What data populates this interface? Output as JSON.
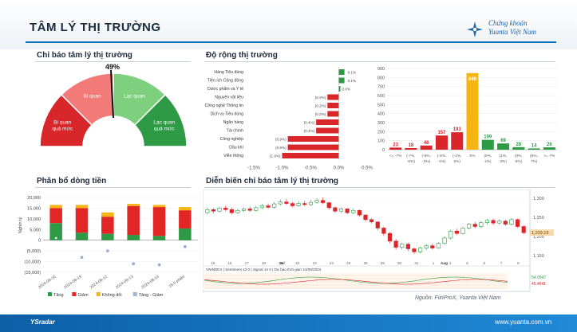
{
  "header": {
    "title": "TÂM LÝ THỊ TRƯỜNG",
    "logo_line1": "Chứng khoán",
    "logo_line2": "Yuanta Việt Nam"
  },
  "sentiment": {
    "title": "Chỉ báo tâm lý thị trường",
    "value_label": "49%",
    "value": 0.49,
    "zones": [
      "Bi quan quá mức",
      "Bi quan",
      "Lạc quan",
      "Lạc quan quá mức"
    ],
    "colors": [
      "#d9262b",
      "#f27a78",
      "#7fd07e",
      "#2e9a46"
    ]
  },
  "breadth": {
    "title": "Độ rộng thị trường",
    "sectors": [
      {
        "name": "Hàng Tiêu dùng",
        "value": 0.1,
        "label": "0.1%"
      },
      {
        "name": "Tiện ích Cộng đồng",
        "value": 0.1,
        "label": "0.1%"
      },
      {
        "name": "Dược phẩm và Y tế",
        "value": 0.0,
        "label": "0.0%"
      },
      {
        "name": "Nguyên vật liệu",
        "value": -0.2,
        "label": "(0.2%)"
      },
      {
        "name": "Công nghệ Thông tin",
        "value": -0.2,
        "label": "(0.2%)"
      },
      {
        "name": "Dịch vụ Tiêu dùng",
        "value": -0.2,
        "label": "(0.2%)"
      },
      {
        "name": "Ngân hàng",
        "value": -0.4,
        "label": "(0.4%)"
      },
      {
        "name": "Tài chính",
        "value": -0.4,
        "label": "(0.4%)"
      },
      {
        "name": "Công nghiệp",
        "value": -0.9,
        "label": "(0.9%)"
      },
      {
        "name": "Dầu khí",
        "value": -0.9,
        "label": "(0.9%)"
      },
      {
        "name": "Viễn thông",
        "value": -1.0,
        "label": "(1.0%)"
      }
    ],
    "x_ticks": [
      "-1.5%",
      "-1.0%",
      "-0.5%",
      "0.0%",
      "0.5%"
    ],
    "xlim": [
      -1.5,
      0.5
    ]
  },
  "distribution": {
    "y_ticks": [
      "900",
      "800",
      "700",
      "600",
      "500",
      "400",
      "300",
      "200",
      "100",
      "0"
    ],
    "ylim": [
      0,
      900
    ],
    "values": [
      23,
      18,
      46,
      157,
      193,
      849,
      109,
      69,
      28,
      14,
      26
    ],
    "labels": [
      "23",
      "18",
      "46",
      "157",
      "193",
      "849",
      "109",
      "69",
      "28",
      "14",
      "26"
    ],
    "categories": [
      "<= -7%",
      "(-7%, -5%)",
      "(-5%, -3%)",
      "(-3%, -1%)",
      "(-1%, 0%)",
      "0%",
      "(0%, 1%)",
      "(1%, 3%)",
      "(3%, 5%)",
      "(5%, 7%)",
      ">= 7%"
    ],
    "cat_line1": [
      "<= -7%",
      "(-7%,",
      "(-5%,",
      "(-3%,",
      "(-1%,",
      "0%",
      "(0%,",
      "(1%,",
      "(3%,",
      "(5%,",
      ">= 7%"
    ],
    "cat_line2": [
      "",
      "-5%)",
      "-3%)",
      "-1%)",
      "0%)",
      "",
      "1%)",
      "3%)",
      "5%)",
      "7%)",
      ""
    ],
    "colors": [
      "#d9262b",
      "#d9262b",
      "#d9262b",
      "#d9262b",
      "#d9262b",
      "#f6b513",
      "#2e9a46",
      "#2e9a46",
      "#2e9a46",
      "#2e9a46",
      "#2e9a46"
    ]
  },
  "money_flow": {
    "title": "Phân bổ dòng tiền",
    "ylabel": "Nghìn tỷ",
    "y_ticks": [
      "20,000",
      "15,000",
      "10,000",
      "5,000",
      "0",
      "(5,000)",
      "(10,000)",
      "(15,000)"
    ],
    "ylim": [
      -15000,
      20000
    ],
    "dates": [
      "2024-08-16",
      "2024-08-19",
      "2024-08-12",
      "2024-08-13",
      "2024-08-14",
      "18.5 phiên"
    ],
    "series": [
      {
        "name": "Tăng",
        "color": "#2e9a46",
        "values": [
          8000,
          3500,
          3000,
          2500,
          2000,
          5500
        ]
      },
      {
        "name": "Giảm",
        "color": "#e22626",
        "values": [
          7000,
          11500,
          8000,
          13500,
          13500,
          8500
        ]
      },
      {
        "name": "Không đổi",
        "color": "#f6b513",
        "values": [
          1500,
          1500,
          2000,
          1000,
          1000,
          1500
        ]
      }
    ],
    "net_name": "Tăng - Giảm",
    "net": [
      1000,
      -8000,
      -5000,
      -11000,
      -11500,
      -3000
    ],
    "legend": [
      "Tăng",
      "Giảm",
      "Không đổi",
      "Tăng - Giảm"
    ]
  },
  "sentiment_history": {
    "title": "Diễn biến chỉ báo tâm lý thị trường",
    "price_ticks": [
      "1,300",
      "1,250",
      "1,200",
      "1,150"
    ],
    "price_ylim": [
      1140,
      1310
    ],
    "last_price": "1,239.19",
    "months": [
      "Jul",
      "Aug"
    ],
    "date_ticks": [
      "15",
      "16",
      "17",
      "18",
      "19",
      "22",
      "23",
      "24",
      "25",
      "26",
      "29",
      "30",
      "31",
      "1",
      "2",
      "5",
      "6",
      "7",
      "8"
    ],
    "indicator_caption": "VNINDEX | Sentiment 12 0 | Signal 14 0 | Dự báo thời gian 14/08/2024",
    "indicator_values": [
      "54.0547",
      "45.4641"
    ],
    "candles": [
      {
        "o": 1262,
        "c": 1270,
        "h": 1275,
        "l": 1258
      },
      {
        "o": 1270,
        "c": 1266,
        "h": 1274,
        "l": 1260
      },
      {
        "o": 1266,
        "c": 1274,
        "h": 1278,
        "l": 1263
      },
      {
        "o": 1274,
        "c": 1270,
        "h": 1280,
        "l": 1266
      },
      {
        "o": 1270,
        "c": 1262,
        "h": 1275,
        "l": 1258
      },
      {
        "o": 1262,
        "c": 1268,
        "h": 1272,
        "l": 1259
      },
      {
        "o": 1268,
        "c": 1272,
        "h": 1276,
        "l": 1264
      },
      {
        "o": 1272,
        "c": 1268,
        "h": 1278,
        "l": 1264
      },
      {
        "o": 1268,
        "c": 1275,
        "h": 1280,
        "l": 1265
      },
      {
        "o": 1275,
        "c": 1280,
        "h": 1285,
        "l": 1271
      },
      {
        "o": 1280,
        "c": 1276,
        "h": 1286,
        "l": 1272
      },
      {
        "o": 1276,
        "c": 1285,
        "h": 1290,
        "l": 1273
      },
      {
        "o": 1285,
        "c": 1290,
        "h": 1296,
        "l": 1281
      },
      {
        "o": 1290,
        "c": 1286,
        "h": 1298,
        "l": 1282
      },
      {
        "o": 1286,
        "c": 1280,
        "h": 1290,
        "l": 1276
      },
      {
        "o": 1280,
        "c": 1286,
        "h": 1292,
        "l": 1277
      },
      {
        "o": 1286,
        "c": 1283,
        "h": 1293,
        "l": 1279
      },
      {
        "o": 1283,
        "c": 1289,
        "h": 1295,
        "l": 1280
      },
      {
        "o": 1289,
        "c": 1294,
        "h": 1300,
        "l": 1285
      },
      {
        "o": 1294,
        "c": 1288,
        "h": 1302,
        "l": 1284
      },
      {
        "o": 1288,
        "c": 1275,
        "h": 1290,
        "l": 1270
      },
      {
        "o": 1275,
        "c": 1266,
        "h": 1278,
        "l": 1262
      },
      {
        "o": 1266,
        "c": 1272,
        "h": 1276,
        "l": 1262
      },
      {
        "o": 1272,
        "c": 1262,
        "h": 1274,
        "l": 1258
      },
      {
        "o": 1262,
        "c": 1268,
        "h": 1272,
        "l": 1258
      },
      {
        "o": 1268,
        "c": 1256,
        "h": 1270,
        "l": 1252
      },
      {
        "o": 1256,
        "c": 1244,
        "h": 1258,
        "l": 1240
      },
      {
        "o": 1244,
        "c": 1238,
        "h": 1248,
        "l": 1234
      },
      {
        "o": 1238,
        "c": 1222,
        "h": 1240,
        "l": 1216
      },
      {
        "o": 1222,
        "c": 1208,
        "h": 1226,
        "l": 1202
      },
      {
        "o": 1208,
        "c": 1188,
        "h": 1212,
        "l": 1182
      },
      {
        "o": 1188,
        "c": 1172,
        "h": 1194,
        "l": 1166
      },
      {
        "o": 1172,
        "c": 1180,
        "h": 1184,
        "l": 1166
      },
      {
        "o": 1180,
        "c": 1168,
        "h": 1184,
        "l": 1162
      },
      {
        "o": 1168,
        "c": 1160,
        "h": 1172,
        "l": 1154
      },
      {
        "o": 1160,
        "c": 1170,
        "h": 1174,
        "l": 1156
      },
      {
        "o": 1170,
        "c": 1176,
        "h": 1180,
        "l": 1165
      },
      {
        "o": 1176,
        "c": 1170,
        "h": 1182,
        "l": 1166
      },
      {
        "o": 1170,
        "c": 1182,
        "h": 1186,
        "l": 1168
      },
      {
        "o": 1182,
        "c": 1196,
        "h": 1200,
        "l": 1178
      },
      {
        "o": 1196,
        "c": 1214,
        "h": 1218,
        "l": 1192
      },
      {
        "o": 1214,
        "c": 1208,
        "h": 1220,
        "l": 1204
      },
      {
        "o": 1208,
        "c": 1222,
        "h": 1226,
        "l": 1205
      },
      {
        "o": 1222,
        "c": 1232,
        "h": 1236,
        "l": 1218
      },
      {
        "o": 1232,
        "c": 1226,
        "h": 1238,
        "l": 1221
      },
      {
        "o": 1226,
        "c": 1236,
        "h": 1240,
        "l": 1222
      },
      {
        "o": 1236,
        "c": 1242,
        "h": 1246,
        "l": 1231
      },
      {
        "o": 1242,
        "c": 1235,
        "h": 1247,
        "l": 1230
      },
      {
        "o": 1235,
        "c": 1240,
        "h": 1245,
        "l": 1231
      },
      {
        "o": 1240,
        "c": 1232,
        "h": 1244,
        "l": 1228
      },
      {
        "o": 1232,
        "c": 1244,
        "h": 1248,
        "l": 1229
      },
      {
        "o": 1244,
        "c": 1226,
        "h": 1247,
        "l": 1222
      },
      {
        "o": 1226,
        "c": 1210,
        "h": 1230,
        "l": 1206
      }
    ]
  },
  "footer": {
    "source": "Nguồn: FiinProX, Yuanta Việt Nam",
    "left": "YSradar",
    "right": "www.yuanta.com.vn"
  }
}
